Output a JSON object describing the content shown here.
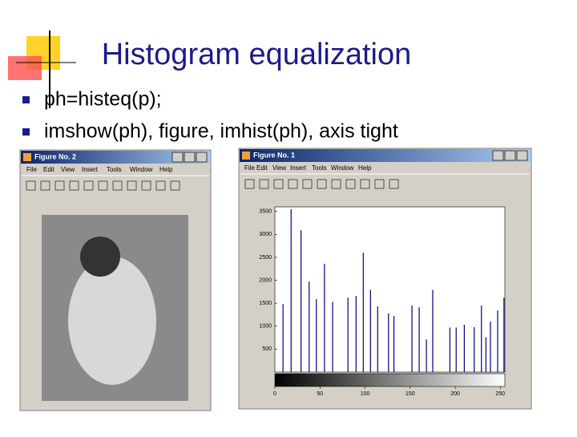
{
  "slide": {
    "title": "Histogram equalization",
    "bullets": [
      "ph=histeq(p);",
      "imshow(ph), figure, imhist(ph), axis tight"
    ]
  },
  "windows": [
    {
      "title": "Figure No. 2",
      "menu": [
        "File",
        "Edit",
        "View",
        "Insert",
        "Tools",
        "Window",
        "Help"
      ]
    },
    {
      "title": "Figure No. 1",
      "menu": [
        "File",
        "Edit",
        "View",
        "Insert",
        "Tools",
        "Window",
        "Help"
      ]
    }
  ],
  "histogram": {
    "type": "stem",
    "color": "#000080",
    "x": [
      9,
      18,
      29,
      38,
      46,
      55,
      64,
      81,
      90,
      98,
      106,
      114,
      126,
      132,
      152,
      160,
      168,
      175,
      194,
      201,
      210,
      221,
      229,
      234,
      239,
      247,
      254
    ],
    "values": [
      1480,
      3550,
      3090,
      1970,
      1590,
      2360,
      1530,
      1620,
      1660,
      2600,
      1790,
      1430,
      1280,
      1220,
      1450,
      1410,
      710,
      1790,
      970,
      970,
      1030,
      980,
      1450,
      760,
      1100,
      1340,
      1620
    ],
    "xlim": [
      0,
      255
    ],
    "ylim": [
      0,
      3600
    ],
    "xticks": [
      0,
      50,
      100,
      150,
      200,
      250
    ],
    "yticks": [
      500,
      1000,
      1500,
      2000,
      2500,
      3000,
      3500
    ]
  }
}
